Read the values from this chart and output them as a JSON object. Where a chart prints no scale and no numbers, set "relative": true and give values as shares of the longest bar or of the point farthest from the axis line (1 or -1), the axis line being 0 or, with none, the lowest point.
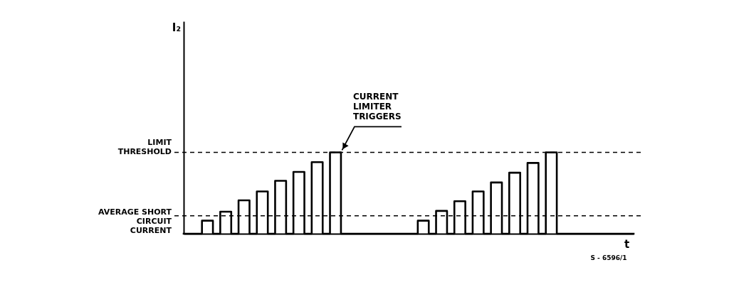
{
  "chart_data": {
    "type": "step",
    "relative": true,
    "xlabel": "t",
    "color": "#000000",
    "categories": [
      null,
      null,
      null,
      null,
      null,
      null,
      null,
      null,
      null,
      null,
      null,
      null,
      null,
      null,
      null,
      null,
      null,
      null,
      null,
      null,
      null,
      null,
      null,
      null,
      null,
      null,
      null,
      null,
      null,
      null,
      null,
      null,
      null,
      null,
      null,
      null,
      null,
      null,
      null,
      null,
      null,
      null,
      null,
      null,
      null,
      null,
      null,
      null,
      null,
      null,
      null,
      null,
      null,
      null,
      null,
      null,
      null,
      null,
      null,
      null,
      null,
      null,
      null,
      null,
      null,
      null,
      null,
      null,
      null,
      null,
      null,
      null,
      null,
      null,
      null,
      null,
      null,
      null,
      null,
      null,
      null,
      null,
      null,
      null,
      null,
      null,
      null,
      null,
      null,
      null,
      null,
      null,
      null,
      null,
      null,
      null,
      null,
      null,
      null,
      null,
      null,
      null,
      null,
      null,
      null,
      null,
      null,
      null,
      null,
      null,
      null,
      null,
      null,
      null,
      null,
      null,
      null,
      null,
      null,
      null,
      null,
      null,
      null,
      null
    ],
    "values": [
      0,
      0,
      0,
      0,
      0,
      0.16,
      0.16,
      0.16,
      0,
      0,
      0.27,
      0.27,
      0.27,
      0,
      0,
      0.41,
      0.41,
      0.41,
      0,
      0,
      0.52,
      0.52,
      0.52,
      0,
      0,
      0.65,
      0.65,
      0.65,
      0,
      0,
      0.76,
      0.76,
      0.76,
      0,
      0,
      0.88,
      0.88,
      0.88,
      0,
      0,
      1,
      1,
      1,
      0,
      0,
      0,
      0,
      0,
      0,
      0,
      0,
      0,
      0,
      0,
      0,
      0,
      0,
      0,
      0,
      0,
      0,
      0,
      0,
      0,
      0.16,
      0.16,
      0.16,
      0,
      0,
      0.28,
      0.28,
      0.28,
      0,
      0,
      0.4,
      0.4,
      0.4,
      0,
      0,
      0.52,
      0.52,
      0.52,
      0,
      0,
      0.63,
      0.63,
      0.63,
      0,
      0,
      0.75,
      0.75,
      0.75,
      0,
      0,
      0.87,
      0.87,
      0.87,
      0,
      0,
      1,
      1,
      1,
      0,
      0,
      0,
      0,
      0,
      0,
      0,
      0,
      0,
      0,
      0,
      0,
      0,
      0,
      0,
      0,
      0,
      0,
      0,
      0,
      0,
      0
    ],
    "ref_lines": [
      {
        "axis": "y",
        "value": 1,
        "label": "LIMIT THRESHOLD",
        "line_style": "dashed",
        "color": "#000000"
      },
      {
        "axis": "y",
        "value": 0.22,
        "label": "AVERAGE SHORT CIRCUIT CURRENT",
        "line_style": "dashed",
        "color": "#000000"
      }
    ],
    "annotations": [
      "I₂",
      "CURRENT LIMITER TRIGGERS",
      "S - 6596/1"
    ]
  }
}
